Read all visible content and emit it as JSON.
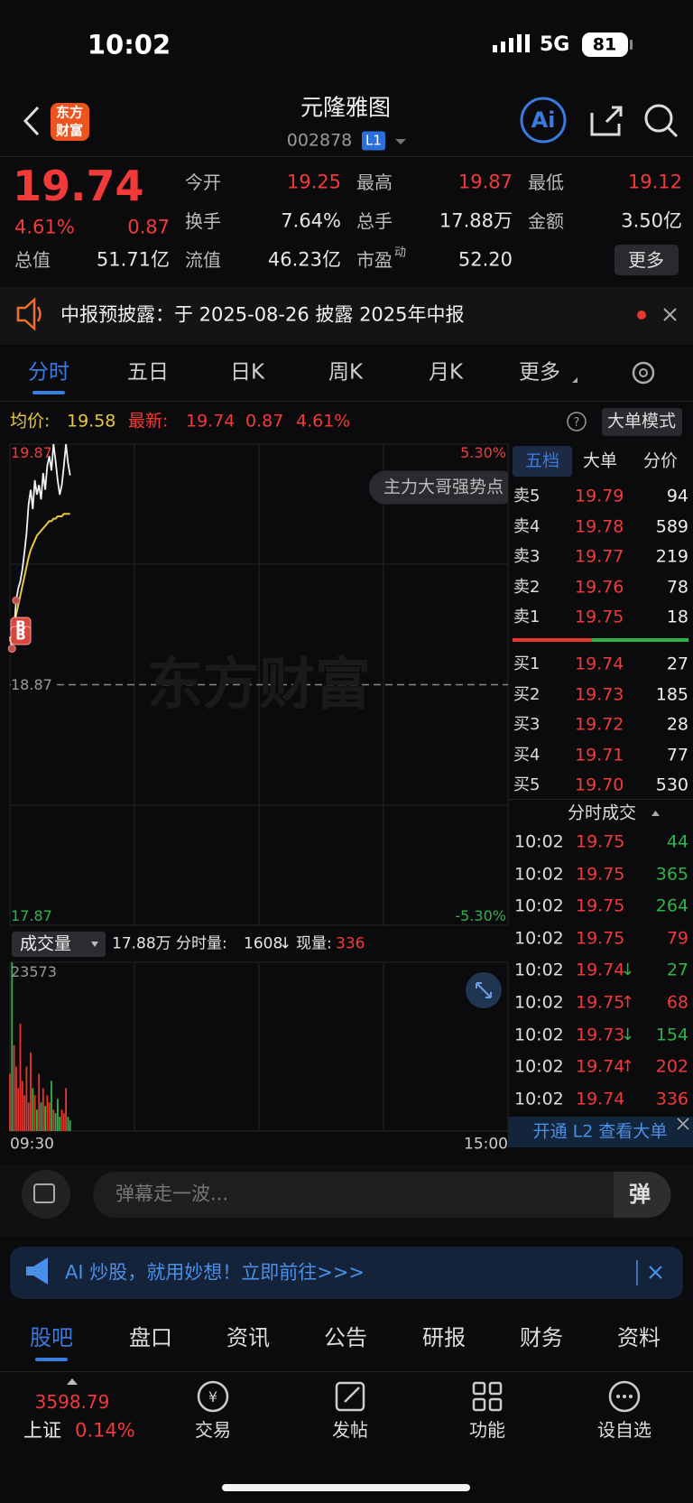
{
  "status_bar": {
    "time": "10:02",
    "network": "5G",
    "battery": "81"
  },
  "header": {
    "logo": [
      "东方",
      "财富"
    ],
    "title": "元隆雅图",
    "code": "002878",
    "level": "L1",
    "ai": "Ai"
  },
  "quote": {
    "price": "19.74",
    "change_pct": "4.61%",
    "change": "0.87",
    "fields": [
      {
        "label": "今开",
        "value": "19.25"
      },
      {
        "label": "最高",
        "value": "19.87"
      },
      {
        "label": "最低",
        "value": "19.12"
      },
      {
        "label": "换手",
        "value": "7.64%"
      },
      {
        "label": "总手",
        "value": "17.88万"
      },
      {
        "label": "金额",
        "value": "3.50亿"
      },
      {
        "label": "流值",
        "value": "46.23亿"
      },
      {
        "label": "市盈",
        "sup": "动",
        "value": "52.20"
      }
    ],
    "market_cap": {
      "label": "总值",
      "value": "51.71亿"
    },
    "more": "更多"
  },
  "notice": {
    "text": "中报预披露：于 2025-08-26 披露 2025年中报"
  },
  "tabs": [
    "分时",
    "五日",
    "日K",
    "周K",
    "月K",
    "更多"
  ],
  "chart_info": {
    "avg_label": "均价:",
    "avg": "19.58",
    "latest_label": "最新:",
    "latest": "19.74",
    "change": "0.87",
    "change_pct": "4.61%",
    "mode": "大单模式"
  },
  "intraday": {
    "type": "line",
    "ylim": [
      17.87,
      19.87
    ],
    "yticks": [
      19.87,
      18.87,
      17.87
    ],
    "pct_labels": [
      "5.30%",
      "-5.30%"
    ],
    "price": {
      "color": "#f2f2f2",
      "values": [
        19.07,
        19.02,
        19.1,
        19.22,
        19.27,
        19.3,
        19.35,
        19.42,
        19.5,
        19.62,
        19.68,
        19.6,
        19.72,
        19.66,
        19.7,
        19.64,
        19.75,
        19.68,
        19.78,
        19.82,
        19.76,
        19.87,
        19.8,
        19.72,
        19.66,
        19.7,
        19.78,
        19.87,
        19.79,
        19.74
      ]
    },
    "average": {
      "color": "#e8c840",
      "values": [
        19.05,
        19.08,
        19.12,
        19.16,
        19.2,
        19.24,
        19.28,
        19.32,
        19.36,
        19.4,
        19.43,
        19.45,
        19.47,
        19.49,
        19.5,
        19.51,
        19.52,
        19.53,
        19.54,
        19.55,
        19.55,
        19.56,
        19.56,
        19.57,
        19.57,
        19.57,
        19.58,
        19.58,
        19.58,
        19.58
      ]
    },
    "watermark": "东方财富",
    "bubble": "主力大哥强势点",
    "markers": [
      "B",
      "B"
    ]
  },
  "volume_header": {
    "selector": "成交量",
    "total": "17.88万",
    "minute_label": "分时量:",
    "minute": "1608",
    "minute_arrow": "↓",
    "current_label": "现量:",
    "current": "336"
  },
  "volume": {
    "type": "bar",
    "ylim": [
      0,
      23573
    ],
    "yticks": [
      23573
    ],
    "up_color": "#e8362f",
    "down_color": "#2fb44a",
    "values": [
      8000,
      23573,
      12000,
      9000,
      6000,
      15000,
      7000,
      5000,
      9000,
      4000,
      11000,
      6000,
      5000,
      3000,
      8000,
      4000,
      6000,
      3500,
      5000,
      4000,
      7000,
      3000,
      2500,
      4500,
      2000,
      3000,
      2500,
      6000,
      2000,
      1500
    ]
  },
  "time_axis": [
    "09:30",
    "15:00"
  ],
  "order_book": {
    "tabs": [
      "五档",
      "大单",
      "分价"
    ],
    "asks": [
      {
        "label": "卖5",
        "price": "19.79",
        "volume": "94"
      },
      {
        "label": "卖4",
        "price": "19.78",
        "volume": "589"
      },
      {
        "label": "卖3",
        "price": "19.77",
        "volume": "219"
      },
      {
        "label": "卖2",
        "price": "19.76",
        "volume": "78"
      },
      {
        "label": "卖1",
        "price": "19.75",
        "volume": "18"
      }
    ],
    "bids": [
      {
        "label": "买1",
        "price": "19.74",
        "volume": "27"
      },
      {
        "label": "买2",
        "price": "19.73",
        "volume": "185"
      },
      {
        "label": "买3",
        "price": "19.72",
        "volume": "28"
      },
      {
        "label": "买4",
        "price": "19.71",
        "volume": "77"
      },
      {
        "label": "买5",
        "price": "19.70",
        "volume": "530"
      }
    ],
    "trades_title": "分时成交",
    "trades": [
      {
        "time": "10:02",
        "price": "19.75",
        "volume": "44",
        "side": "sell"
      },
      {
        "time": "10:02",
        "price": "19.75",
        "volume": "365",
        "side": "sell"
      },
      {
        "time": "10:02",
        "price": "19.75",
        "volume": "264",
        "side": "sell"
      },
      {
        "time": "10:02",
        "price": "19.75",
        "volume": "79",
        "side": "buy"
      },
      {
        "time": "10:02",
        "price": "19.74",
        "arrow": "↓",
        "volume": "27",
        "side": "sell"
      },
      {
        "time": "10:02",
        "price": "19.75",
        "arrow": "↑",
        "volume": "68",
        "side": "buy"
      },
      {
        "time": "10:02",
        "price": "19.73",
        "arrow": "↓",
        "volume": "154",
        "side": "sell"
      },
      {
        "time": "10:02",
        "price": "19.74",
        "arrow": "↑",
        "volume": "202",
        "side": "buy"
      },
      {
        "time": "10:02",
        "price": "19.74",
        "volume": "336",
        "side": "buy"
      }
    ],
    "l2_banner": "开通 L2 查看大单"
  },
  "comment": {
    "placeholder": "弹幕走一波...",
    "button": "弹"
  },
  "ai_banner": "AI 炒股，就用妙想！立即前往>>>",
  "bottom_tabs": [
    "股吧",
    "盘口",
    "资讯",
    "公告",
    "研报",
    "财务",
    "资料"
  ],
  "index": {
    "value": "3598.79",
    "name": "上证",
    "change_pct": "0.14%"
  },
  "nav": [
    "交易",
    "发帖",
    "功能",
    "设自选"
  ]
}
